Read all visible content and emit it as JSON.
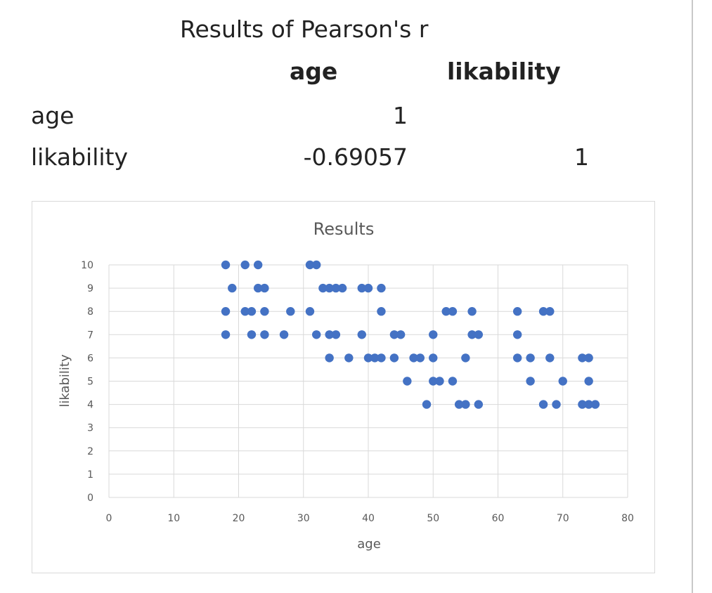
{
  "table": {
    "title": "Results of Pearson's r",
    "col_headers": [
      "age",
      "likability"
    ],
    "rows": [
      {
        "label": "age",
        "values": [
          "1",
          ""
        ]
      },
      {
        "label": "likability",
        "values": [
          "-0.69057",
          "1"
        ]
      }
    ]
  },
  "chart_data": {
    "type": "scatter",
    "title": "Results",
    "xlabel": "age",
    "ylabel": "likability",
    "xlim": [
      0,
      80
    ],
    "ylim": [
      0,
      10
    ],
    "x_ticks": [
      "0",
      "10",
      "20",
      "30",
      "40",
      "50",
      "60",
      "70",
      "80"
    ],
    "y_ticks": [
      "0",
      "1",
      "2",
      "3",
      "4",
      "5",
      "6",
      "7",
      "8",
      "9",
      "10"
    ],
    "grid": true,
    "marker_color": "#4472C4",
    "points": [
      [
        18,
        10
      ],
      [
        21,
        10
      ],
      [
        23,
        10
      ],
      [
        31,
        10
      ],
      [
        32,
        10
      ],
      [
        19,
        9
      ],
      [
        23,
        9
      ],
      [
        24,
        9
      ],
      [
        33,
        9
      ],
      [
        34,
        9
      ],
      [
        35,
        9
      ],
      [
        36,
        9
      ],
      [
        39,
        9
      ],
      [
        40,
        9
      ],
      [
        42,
        9
      ],
      [
        18,
        8
      ],
      [
        21,
        8
      ],
      [
        22,
        8
      ],
      [
        24,
        8
      ],
      [
        28,
        8
      ],
      [
        31,
        8
      ],
      [
        42,
        8
      ],
      [
        52,
        8
      ],
      [
        53,
        8
      ],
      [
        56,
        8
      ],
      [
        63,
        8
      ],
      [
        67,
        8
      ],
      [
        68,
        8
      ],
      [
        18,
        7
      ],
      [
        22,
        7
      ],
      [
        24,
        7
      ],
      [
        27,
        7
      ],
      [
        32,
        7
      ],
      [
        34,
        7
      ],
      [
        35,
        7
      ],
      [
        39,
        7
      ],
      [
        44,
        7
      ],
      [
        45,
        7
      ],
      [
        50,
        7
      ],
      [
        56,
        7
      ],
      [
        57,
        7
      ],
      [
        63,
        7
      ],
      [
        34,
        6
      ],
      [
        37,
        6
      ],
      [
        40,
        6
      ],
      [
        41,
        6
      ],
      [
        42,
        6
      ],
      [
        44,
        6
      ],
      [
        47,
        6
      ],
      [
        48,
        6
      ],
      [
        50,
        6
      ],
      [
        55,
        6
      ],
      [
        63,
        6
      ],
      [
        65,
        6
      ],
      [
        68,
        6
      ],
      [
        73,
        6
      ],
      [
        74,
        6
      ],
      [
        46,
        5
      ],
      [
        50,
        5
      ],
      [
        51,
        5
      ],
      [
        53,
        5
      ],
      [
        65,
        5
      ],
      [
        70,
        5
      ],
      [
        74,
        5
      ],
      [
        49,
        4
      ],
      [
        54,
        4
      ],
      [
        55,
        4
      ],
      [
        57,
        4
      ],
      [
        67,
        4
      ],
      [
        69,
        4
      ],
      [
        73,
        4
      ],
      [
        74,
        4
      ],
      [
        75,
        4
      ]
    ]
  }
}
